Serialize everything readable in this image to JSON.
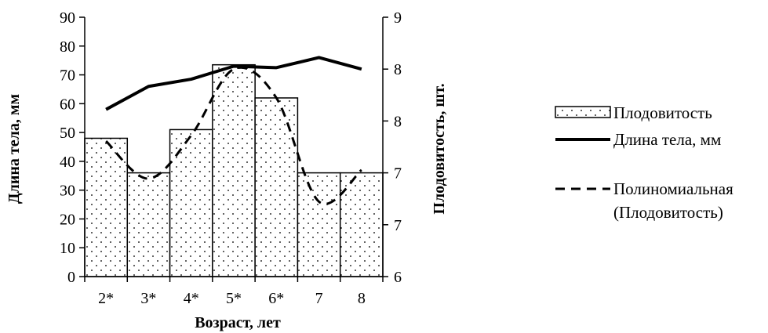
{
  "chart_data": {
    "type": "bar",
    "categories": [
      "2*",
      "3*",
      "4*",
      "5*",
      "6*",
      "7",
      "8"
    ],
    "xlabel": "Возраст, лет",
    "y_left": {
      "label": "Длина тела, мм",
      "ylim": [
        0,
        90
      ],
      "ticks": [
        "0",
        "10",
        "20",
        "30",
        "40",
        "50",
        "60",
        "70",
        "80",
        "90"
      ]
    },
    "y_right": {
      "label": "Плодовитость, шт.",
      "ylim": [
        6,
        9
      ],
      "ticks": [
        "6",
        "7",
        "7",
        "8",
        "8",
        "9"
      ]
    },
    "series": [
      {
        "name": "Плодовитость",
        "kind": "bar",
        "axis": "left",
        "values": [
          48,
          36,
          51,
          73.5,
          62,
          36,
          36
        ]
      },
      {
        "name": "Длина тела, мм",
        "kind": "line",
        "axis": "left",
        "values": [
          58,
          66,
          68.5,
          73,
          72.5,
          76,
          72
        ]
      },
      {
        "name": "Полиномиальная (Плодовитость)",
        "kind": "trendline",
        "axis": "left",
        "values": [
          47,
          34,
          49,
          72,
          62,
          26,
          37
        ]
      }
    ],
    "legend": {
      "position": "right",
      "entries": [
        "Плодовитость",
        "Длина тела, мм",
        "Полиномиальная",
        "(Плодовитость)"
      ]
    },
    "grid": false
  }
}
